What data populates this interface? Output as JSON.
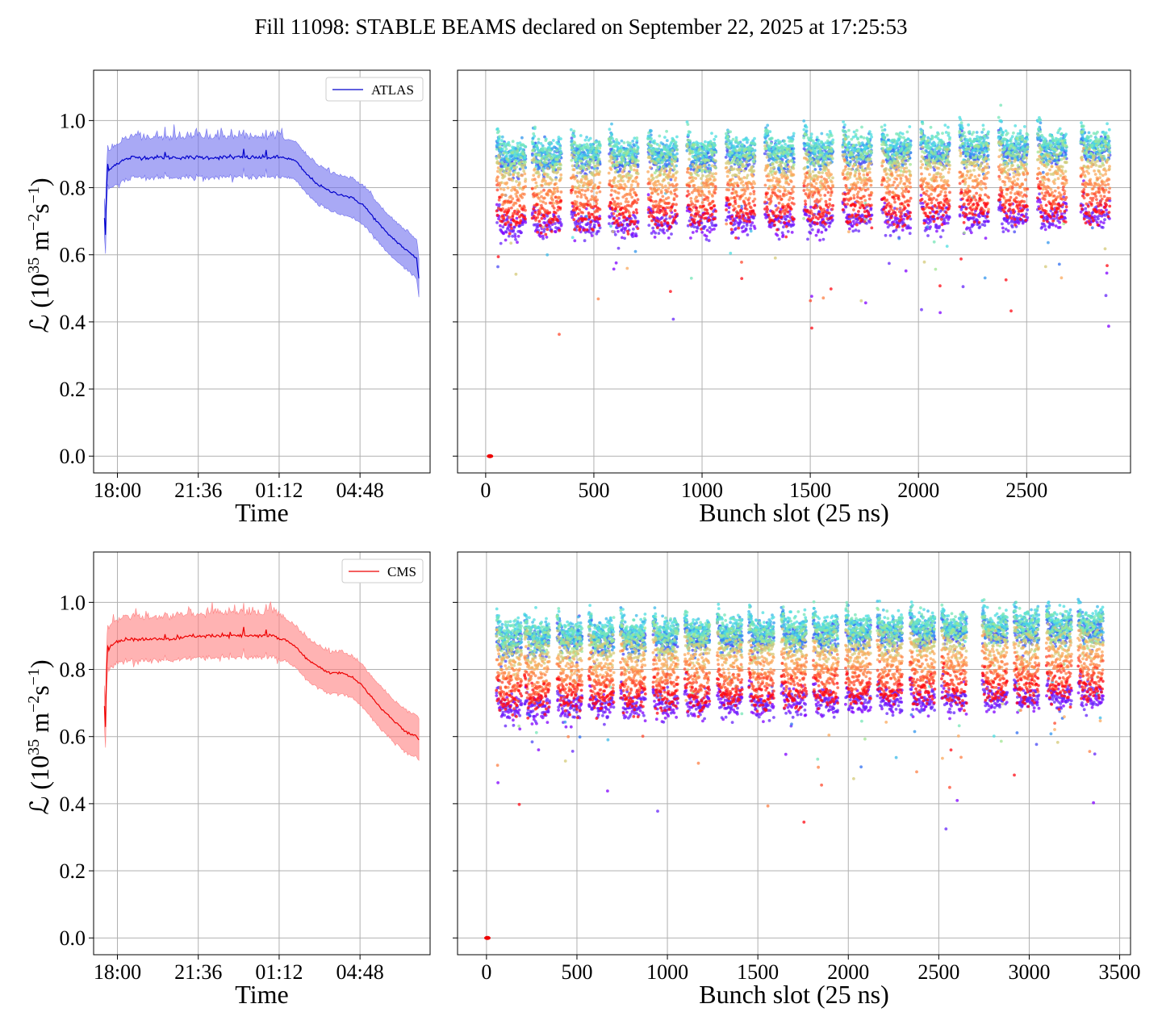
{
  "title": "Fill 11098: STABLE BEAMS declared on September 22, 2025 at 17:25:53",
  "chart_data": [
    {
      "id": "atlas-time",
      "type": "line",
      "series": [
        {
          "name": "ATLAS",
          "color": "#0000cc",
          "band_color": "#7070ee"
        }
      ],
      "xlabel": "Time",
      "ylabel_main": "ℒ (10",
      "ylabel_exp": "35",
      "ylabel_unit": " m",
      "ylabel_exp2": "−2",
      "ylabel_s": "s",
      "ylabel_exp3": "−1",
      "ylabel_close": ")",
      "xticks": [
        "18:00",
        "21:36",
        "01:12",
        "04:48"
      ],
      "xtick_hours": [
        0.58,
        4.18,
        7.78,
        11.38
      ],
      "xlim_hours": [
        -0.48,
        14.5
      ],
      "yticks": [
        "0.0",
        "0.2",
        "0.4",
        "0.6",
        "0.8",
        "1.0"
      ],
      "ylim": [
        -0.05,
        1.15
      ],
      "x_hours": [
        0.0,
        0.05,
        0.1,
        0.15,
        0.2,
        0.3,
        0.5,
        0.8,
        1.2,
        2.0,
        3.0,
        4.0,
        5.0,
        6.0,
        7.0,
        7.5,
        7.8,
        8.0,
        8.5,
        9.0,
        9.5,
        10.0,
        10.5,
        11.0,
        11.5,
        12.0,
        12.5,
        13.0,
        13.5,
        13.9,
        14.0
      ],
      "y_values": [
        0.71,
        0.66,
        0.8,
        0.87,
        0.85,
        0.86,
        0.87,
        0.88,
        0.89,
        0.89,
        0.89,
        0.89,
        0.89,
        0.89,
        0.89,
        0.89,
        0.89,
        0.89,
        0.88,
        0.84,
        0.81,
        0.79,
        0.78,
        0.77,
        0.75,
        0.71,
        0.67,
        0.64,
        0.61,
        0.59,
        0.53
      ],
      "band_halfwidth": 0.055
    },
    {
      "id": "atlas-bunch",
      "type": "scatter",
      "xlabel": "Bunch slot (25 ns)",
      "xticks": [
        0,
        500,
        1000,
        1500,
        2000,
        2500
      ],
      "xlim": [
        -130,
        2980
      ],
      "ylim": [
        -0.05,
        1.15
      ],
      "train_starts": [
        50,
        215,
        395,
        570,
        750,
        930,
        1110,
        1290,
        1470,
        1650,
        1830,
        2010,
        2190,
        2370,
        2550,
        2750
      ],
      "train_length": 135,
      "low_point": [
        20,
        0.0
      ]
    },
    {
      "id": "cms-time",
      "type": "line",
      "series": [
        {
          "name": "CMS",
          "color": "#ee0000",
          "band_color": "#ff8080"
        }
      ],
      "xlabel": "Time",
      "xticks": [
        "18:00",
        "21:36",
        "01:12",
        "04:48"
      ],
      "xtick_hours": [
        0.58,
        4.18,
        7.78,
        11.38
      ],
      "xlim_hours": [
        -0.48,
        14.5
      ],
      "yticks": [
        "0.0",
        "0.2",
        "0.4",
        "0.6",
        "0.8",
        "1.0"
      ],
      "ylim": [
        -0.05,
        1.15
      ],
      "x_hours": [
        0.0,
        0.05,
        0.1,
        0.15,
        0.2,
        0.3,
        0.5,
        0.8,
        1.2,
        2.0,
        3.0,
        4.0,
        5.0,
        6.0,
        7.0,
        7.5,
        7.8,
        8.0,
        8.5,
        9.0,
        9.5,
        10.0,
        10.5,
        11.0,
        11.5,
        12.0,
        12.5,
        13.0,
        13.5,
        13.9,
        14.0
      ],
      "y_values": [
        0.69,
        0.63,
        0.8,
        0.87,
        0.86,
        0.87,
        0.88,
        0.89,
        0.89,
        0.89,
        0.89,
        0.9,
        0.9,
        0.9,
        0.9,
        0.9,
        0.89,
        0.89,
        0.87,
        0.83,
        0.81,
        0.79,
        0.79,
        0.78,
        0.75,
        0.71,
        0.67,
        0.64,
        0.61,
        0.6,
        0.59
      ],
      "band_halfwidth": 0.06
    },
    {
      "id": "cms-bunch",
      "type": "scatter",
      "xlabel": "Bunch slot (25 ns)",
      "xticks": [
        0,
        500,
        1000,
        1500,
        2000,
        2500,
        3000,
        3500
      ],
      "xlim": [
        -160,
        3560
      ],
      "ylim": [
        -0.05,
        1.15
      ],
      "train_starts": [
        55,
        210,
        390,
        565,
        740,
        920,
        1095,
        1275,
        1450,
        1630,
        1805,
        1985,
        2160,
        2340,
        2515,
        2740,
        2915,
        3095,
        3270
      ],
      "train_length": 140,
      "low_point": [
        5,
        0.0
      ]
    }
  ]
}
